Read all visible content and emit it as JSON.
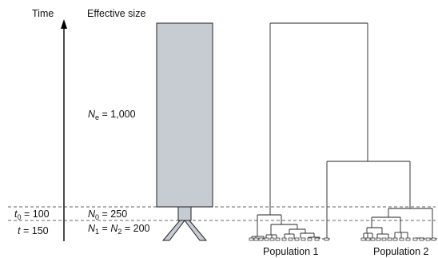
{
  "headers": {
    "time": "Time",
    "effective_size": "Effective size"
  },
  "ancestral": {
    "sym": "N",
    "sub": "e",
    "value": "= 1,000"
  },
  "founder": {
    "sym": "N",
    "sub": "0",
    "value": "= 250"
  },
  "split": {
    "n1_sym": "N",
    "n1_sub": "1",
    "eq": "=",
    "n2_sym": "N",
    "n2_sub": "2",
    "value": "= 200"
  },
  "time_t0": {
    "sym": "t",
    "sub": "0",
    "value": "= 100"
  },
  "time_t": {
    "sym": "t",
    "value": "= 150"
  },
  "populations": [
    "Population 1",
    "Population 2"
  ],
  "colors": {
    "pop_fill": "#c7cbd2",
    "pop_stroke": "#222222",
    "axis": "#000000",
    "dashed": "#333333"
  }
}
